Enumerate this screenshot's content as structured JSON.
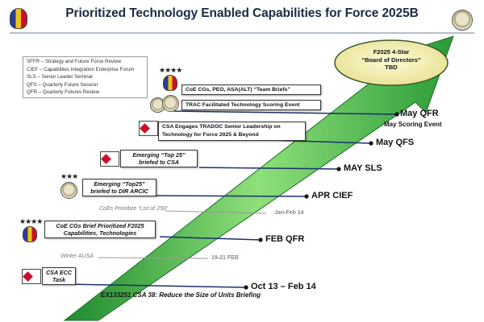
{
  "title": "Prioritized Technology Enabled Capabilities for Force 2025B",
  "legend": [
    "SFFR – Strategy and Future Force Review",
    "CIEF – Capabilities Integration Enterprise Forum",
    "SLS – Senior Leader Seminar",
    "QFS – Quarterly Future Session",
    "QFR – Quarterly Futures Review"
  ],
  "board": {
    "line1": "F2025 4-Star",
    "line2": "“Board of Directors”",
    "line3": "TBD"
  },
  "milestones": [
    {
      "label": "May QFR",
      "sub": "May Scoring Event"
    },
    {
      "label": "May QFS"
    },
    {
      "label": "MAY SLS"
    },
    {
      "label": "APR CIEF"
    },
    {
      "label": "FEB QFR"
    },
    {
      "label": "Oct 13 – Feb 14",
      "sub": "EX133251 CSA 38: Reduce the Size of Units Briefing"
    }
  ],
  "grey_events": [
    {
      "label": "CoEs Prioritize “List of 250”",
      "date": "Jan-Feb 14"
    },
    {
      "label": "Winter AUSA",
      "date": "19-21 FEB"
    }
  ],
  "boxes": {
    "team_briefs": "CoE CGs, PEO, ASA(ALT) “Team Briefs”",
    "trac": "TRAC Facilitated Technology Scoring Event",
    "csa_tradoc": "CSA Engages TRADOC Senior Leadership on Technology for Force 2025 & Beyond",
    "top25_csa": "Emerging “Top 25” briefed to CSA",
    "top25_arcic": "Emerging “Top25” briefed to DIR ARCIC",
    "coe_feb": "CoE CGs Brief Prioritized F2025 Capabilities, Technologies",
    "csa_ecc": "CSA ECC Task"
  },
  "stars": {
    "four": "★★★★",
    "three": "★★★"
  },
  "colors": {
    "arrow_light": "#8fe07a",
    "arrow_dark": "#1f8a2e",
    "board_fill": "#f3efb0",
    "line": "#1c2f6b",
    "grey_line": "#9a9a9a"
  }
}
